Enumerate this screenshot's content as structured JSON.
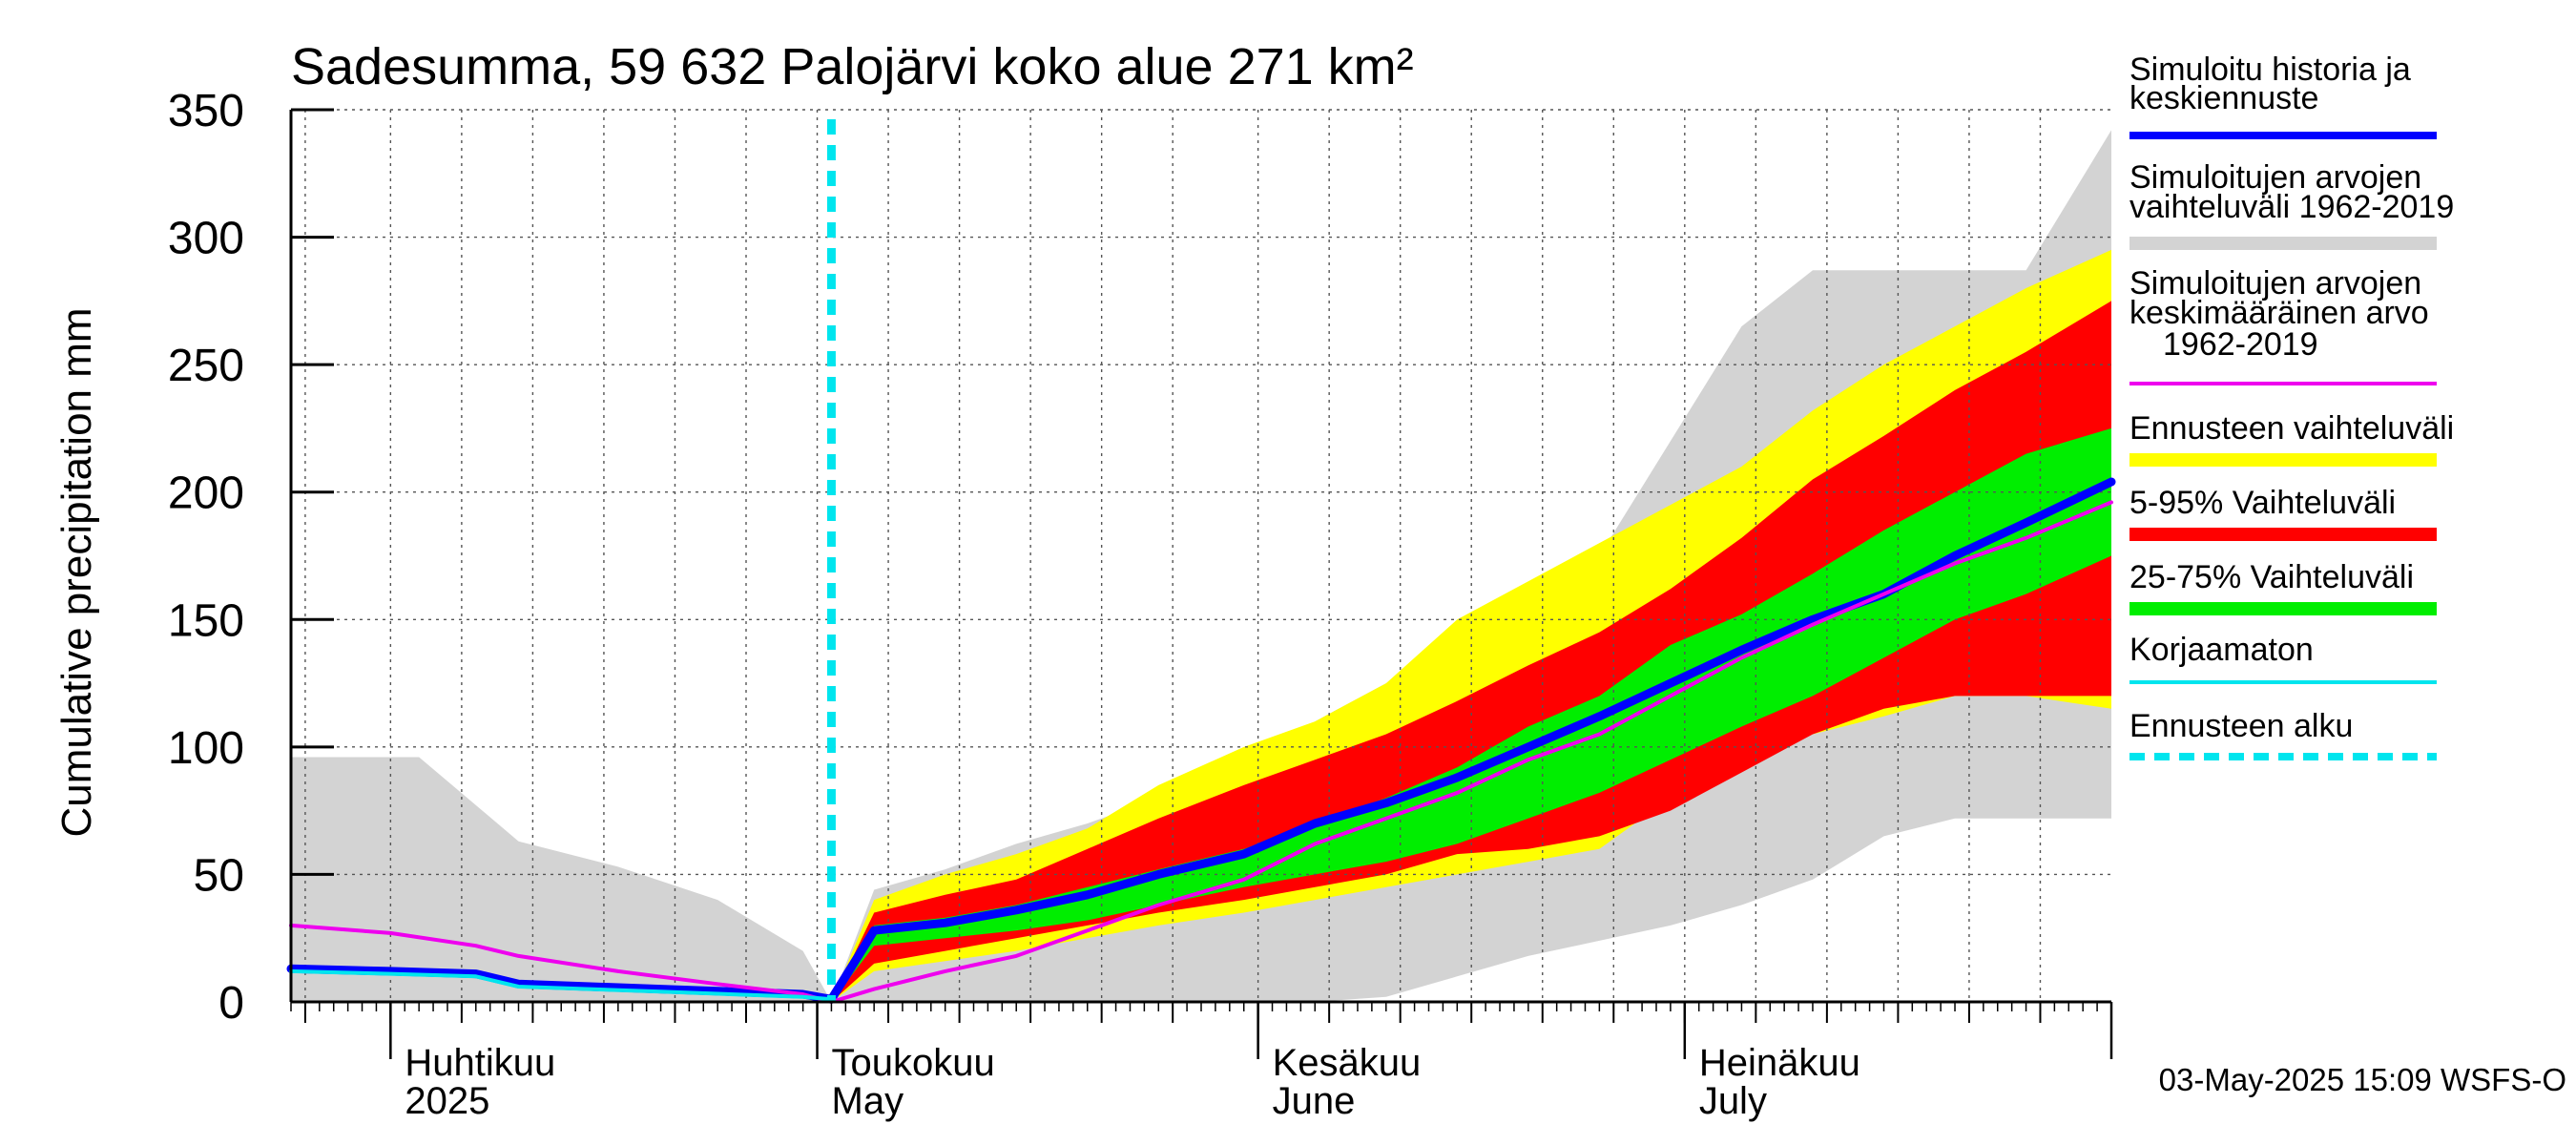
{
  "chart_data": {
    "type": "area",
    "title": "Sadesumma, 59 632 Palojärvi koko alue 271 km²",
    "ylabel": "Cumulative precipitation   mm",
    "ylim": [
      0,
      350
    ],
    "yticks": [
      0,
      50,
      100,
      150,
      200,
      250,
      300,
      350
    ],
    "x_start": "2025-03-25",
    "x_end": "2025-07-31",
    "forecast_start": "2025-05-02",
    "month_labels": [
      {
        "date": "2025-04-01",
        "fi": "Huhtikuu",
        "en": "2025"
      },
      {
        "date": "2025-05-01",
        "fi": "Toukokuu",
        "en": "May"
      },
      {
        "date": "2025-06-01",
        "fi": "Kesäkuu",
        "en": "June"
      },
      {
        "date": "2025-07-01",
        "fi": "Heinäkuu",
        "en": "July"
      }
    ],
    "bands": {
      "dates": [
        "2025-03-25",
        "2025-04-03",
        "2025-04-10",
        "2025-04-17",
        "2025-04-24",
        "2025-04-30",
        "2025-05-02",
        "2025-05-05",
        "2025-05-10",
        "2025-05-15",
        "2025-05-20",
        "2025-05-25",
        "2025-05-31",
        "2025-06-05",
        "2025-06-10",
        "2025-06-15",
        "2025-06-20",
        "2025-06-25",
        "2025-06-30",
        "2025-07-05",
        "2025-07-10",
        "2025-07-15",
        "2025-07-20",
        "2025-07-25",
        "2025-07-31"
      ],
      "hist_max": [
        96,
        96,
        63,
        53,
        40,
        20,
        0,
        44,
        52,
        62,
        70,
        80,
        92,
        110,
        125,
        132,
        150,
        175,
        220,
        265,
        287,
        287,
        287,
        287,
        342
      ],
      "hist_min": [
        0,
        0,
        0,
        0,
        0,
        0,
        0,
        0,
        0,
        0,
        0,
        0,
        0,
        0,
        2,
        10,
        18,
        24,
        30,
        38,
        48,
        65,
        72,
        72,
        72
      ],
      "fc_max": [
        null,
        null,
        null,
        null,
        null,
        null,
        0,
        40,
        50,
        58,
        68,
        85,
        100,
        110,
        125,
        150,
        165,
        180,
        195,
        210,
        232,
        250,
        265,
        280,
        295
      ],
      "fc_min": [
        null,
        null,
        null,
        null,
        null,
        null,
        0,
        12,
        16,
        20,
        25,
        30,
        35,
        40,
        45,
        50,
        55,
        60,
        80,
        95,
        105,
        112,
        120,
        120,
        115
      ],
      "p95": [
        null,
        null,
        null,
        null,
        null,
        null,
        0,
        35,
        42,
        48,
        60,
        72,
        85,
        95,
        105,
        118,
        132,
        145,
        162,
        182,
        205,
        222,
        240,
        255,
        275
      ],
      "p05": [
        null,
        null,
        null,
        null,
        null,
        null,
        0,
        15,
        20,
        25,
        30,
        35,
        40,
        45,
        50,
        58,
        60,
        65,
        75,
        90,
        105,
        115,
        120,
        120,
        120
      ],
      "p75": [
        null,
        null,
        null,
        null,
        null,
        null,
        0,
        30,
        33,
        38,
        45,
        52,
        60,
        70,
        80,
        92,
        108,
        120,
        140,
        152,
        168,
        185,
        200,
        215,
        225
      ],
      "p25": [
        null,
        null,
        null,
        null,
        null,
        null,
        0,
        22,
        25,
        28,
        32,
        38,
        45,
        50,
        55,
        62,
        72,
        82,
        95,
        108,
        120,
        135,
        150,
        160,
        175
      ]
    },
    "series": [
      {
        "name": "Simuloitu historia ja keskiennuste",
        "color": "#0000ff",
        "x": [
          "2025-03-25",
          "2025-04-01",
          "2025-04-07",
          "2025-04-10",
          "2025-04-20",
          "2025-04-30",
          "2025-05-02",
          "2025-05-05",
          "2025-05-10",
          "2025-05-15",
          "2025-05-20",
          "2025-05-25",
          "2025-05-31",
          "2025-06-05",
          "2025-06-10",
          "2025-06-15",
          "2025-06-20",
          "2025-06-25",
          "2025-06-30",
          "2025-07-05",
          "2025-07-10",
          "2025-07-15",
          "2025-07-20",
          "2025-07-25",
          "2025-07-31"
        ],
        "y": [
          13,
          12,
          11,
          7,
          5,
          3,
          1,
          28,
          31,
          36,
          42,
          50,
          58,
          70,
          78,
          88,
          100,
          112,
          125,
          138,
          150,
          160,
          175,
          188,
          204
        ]
      },
      {
        "name": "Simuloitujen arvojen keskimääräinen arvo 1962-2019",
        "color": "#ee00ee",
        "x": [
          "2025-03-25",
          "2025-04-01",
          "2025-04-07",
          "2025-04-10",
          "2025-04-17",
          "2025-04-24",
          "2025-04-30",
          "2025-05-02",
          "2025-05-05",
          "2025-05-10",
          "2025-05-15",
          "2025-05-20",
          "2025-05-25",
          "2025-05-31",
          "2025-06-05",
          "2025-06-10",
          "2025-06-15",
          "2025-06-20",
          "2025-06-25",
          "2025-06-30",
          "2025-07-05",
          "2025-07-10",
          "2025-07-15",
          "2025-07-20",
          "2025-07-25",
          "2025-07-31"
        ],
        "y": [
          30,
          27,
          22,
          18,
          12,
          7,
          3,
          0,
          5,
          12,
          18,
          28,
          38,
          48,
          62,
          72,
          82,
          95,
          105,
          120,
          135,
          148,
          160,
          172,
          182,
          196
        ]
      },
      {
        "name": "Korjaamaton",
        "color": "#00e5ee",
        "x": [
          "2025-03-25",
          "2025-04-01",
          "2025-04-07",
          "2025-04-10",
          "2025-04-20",
          "2025-04-30",
          "2025-05-02"
        ],
        "y": [
          12,
          11,
          10,
          6,
          4,
          2,
          1
        ]
      }
    ],
    "legend": [
      {
        "label": "Simuloitu historia ja keskiennuste",
        "lines": [
          "Simuloitu historia ja",
          "keskiennuste"
        ],
        "color": "#0000ff",
        "style": "line"
      },
      {
        "label": "Simuloitujen arvojen vaihteluväli 1962-2019",
        "lines": [
          "Simuloitujen arvojen",
          "vaihteluväli 1962-2019"
        ],
        "color": "#d3d3d3",
        "style": "band"
      },
      {
        "label": "Simuloitujen arvojen keskimääräinen arvo 1962-2019",
        "lines": [
          "Simuloitujen arvojen",
          "keskimääräinen arvo",
          "1962-2019"
        ],
        "color": "#ee00ee",
        "style": "thin"
      },
      {
        "label": "Ennusteen vaihteluväli",
        "lines": [
          "Ennusteen vaihteluväli"
        ],
        "color": "#ffff00",
        "style": "band"
      },
      {
        "label": "5-95% Vaihteluväli",
        "lines": [
          "5-95% Vaihteluväli"
        ],
        "color": "#ff0000",
        "style": "band"
      },
      {
        "label": "25-75% Vaihteluväli",
        "lines": [
          "25-75% Vaihteluväli"
        ],
        "color": "#00ee00",
        "style": "band"
      },
      {
        "label": "Korjaamaton",
        "lines": [
          "Korjaamaton"
        ],
        "color": "#00e5ee",
        "style": "thin"
      },
      {
        "label": "Ennusteen alku",
        "lines": [
          "Ennusteen alku"
        ],
        "color": "#00e5ee",
        "style": "dashed"
      }
    ],
    "grid": true,
    "legend_position": "right",
    "footer": "03-May-2025 15:09 WSFS-O"
  }
}
